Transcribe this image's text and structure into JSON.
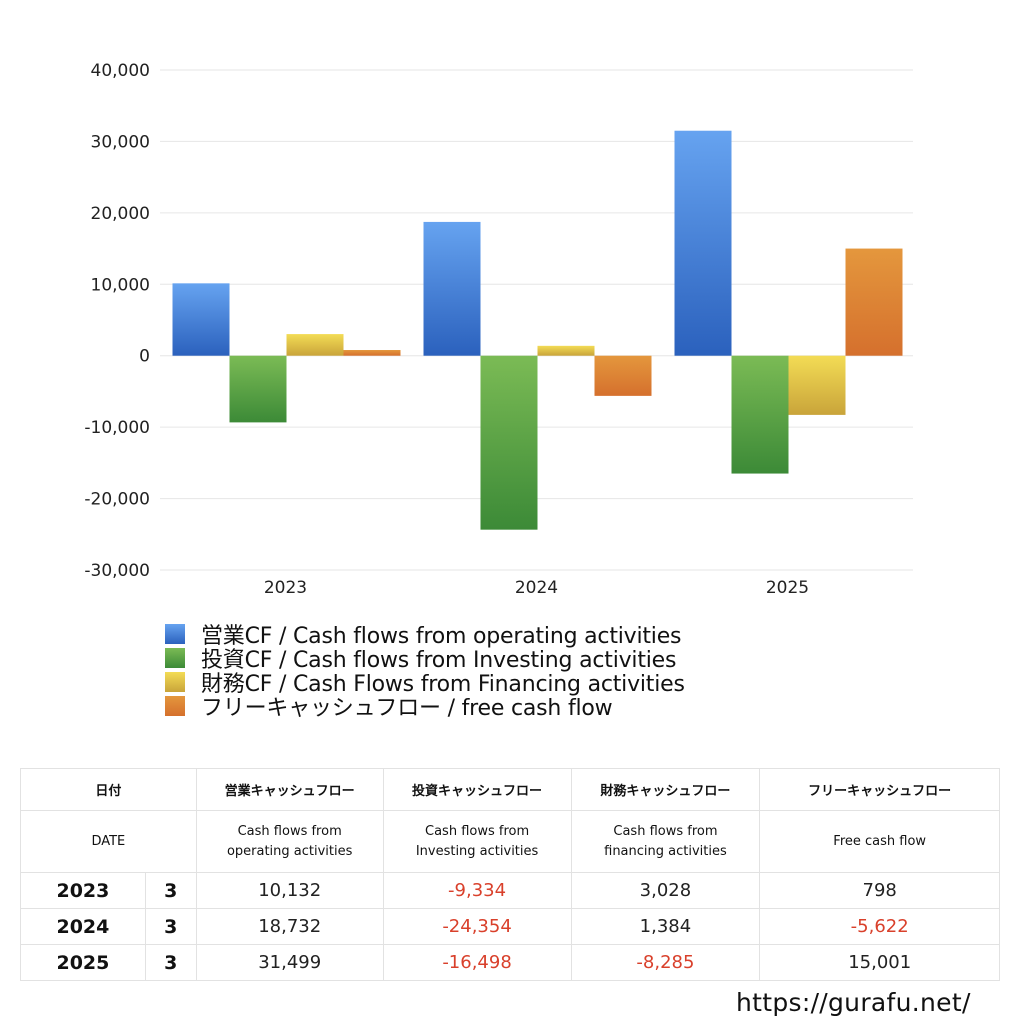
{
  "chart_data": {
    "type": "bar",
    "title": "",
    "xlabel": "",
    "ylabel": "",
    "categories": [
      "2023",
      "2024",
      "2025"
    ],
    "series": [
      {
        "name": "営業CF / Cash flows from operating activities",
        "values": [
          10132,
          18732,
          31499
        ],
        "color_top": "#66a3f0",
        "color_bottom": "#2b61bd"
      },
      {
        "name": "投資CF / Cash flows from Investing activities",
        "values": [
          -9334,
          -24354,
          -16498
        ],
        "color_top": "#7bbb55",
        "color_bottom": "#3c8a37"
      },
      {
        "name": "財務CF / Cash Flows from Financing activities",
        "values": [
          3028,
          1384,
          -8285
        ],
        "color_top": "#f3dc55",
        "color_bottom": "#c9a43a"
      },
      {
        "name": "フリーキャッシュフロー / free cash flow",
        "values": [
          798,
          -5622,
          15001
        ],
        "color_top": "#e4973d",
        "color_bottom": "#d5702d"
      }
    ],
    "ylim": [
      -30000,
      40000
    ],
    "yticks": [
      40000,
      30000,
      20000,
      10000,
      0,
      -10000,
      -20000,
      -30000
    ],
    "ytick_labels": [
      "40,000",
      "30,000",
      "20,000",
      "10,000",
      "0",
      "-10,000",
      "-20,000",
      "-30,000"
    ],
    "grid": true,
    "legend_position": "bottom-left"
  },
  "legend": [
    {
      "label": "営業CF / Cash flows from operating activities",
      "color": "#4a84dc"
    },
    {
      "label": "投資CF / Cash flows from Investing activities",
      "color": "#56a044"
    },
    {
      "label": "財務CF / Cash Flows from Financing activities",
      "color": "#e2c448"
    },
    {
      "label": "フリーキャッシュフロー / free cash flow",
      "color": "#dd8134"
    }
  ],
  "table": {
    "header_jp": [
      "日付",
      "営業キャッシュフロー",
      "投資キャッシュフロー",
      "財務キャッシュフロー",
      "フリーキャッシュフロー"
    ],
    "header_en": [
      "DATE",
      "Cash flows from operating activities",
      "Cash flows from Investing activities",
      "Cash flows from financing activities",
      "Free cash flow"
    ],
    "rows": [
      {
        "year": "2023",
        "month": "3",
        "operating": "10,132",
        "investing": "-9,334",
        "financing": "3,028",
        "free": "798"
      },
      {
        "year": "2024",
        "month": "3",
        "operating": "18,732",
        "investing": "-24,354",
        "financing": "1,384",
        "free": "-5,622"
      },
      {
        "year": "2025",
        "month": "3",
        "operating": "31,499",
        "investing": "-16,498",
        "financing": "-8,285",
        "free": "15,001"
      }
    ],
    "negative_color": "#d9402b"
  },
  "footer": {
    "site": "https://gurafu.net/"
  }
}
